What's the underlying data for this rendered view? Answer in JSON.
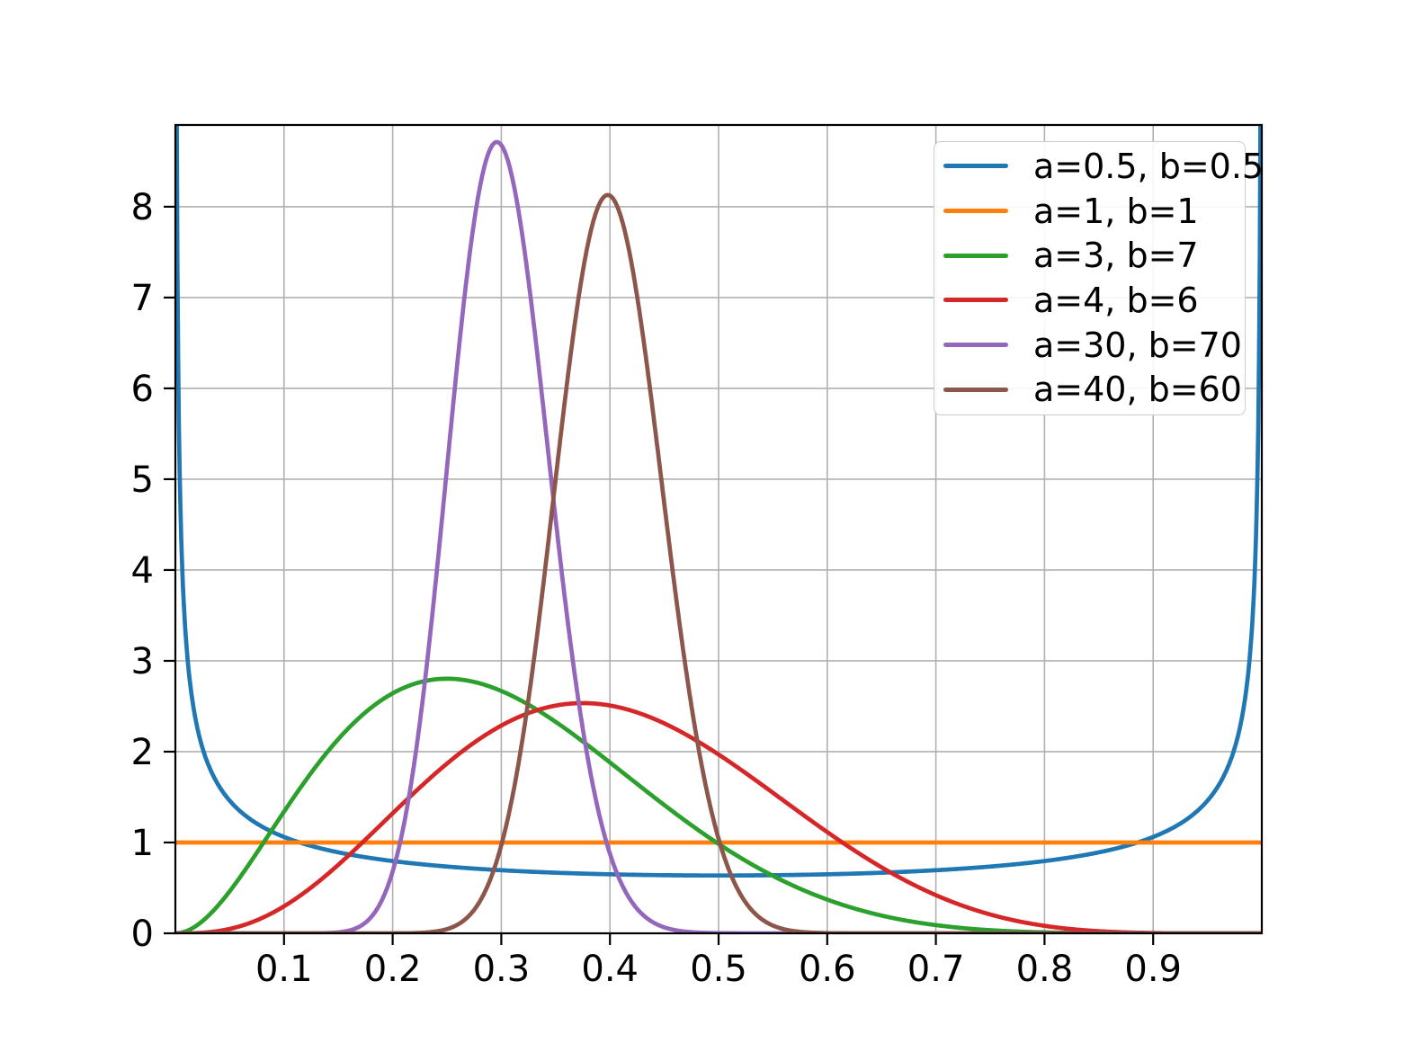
{
  "figure": {
    "background": "#ffffff",
    "grid_color": "#b0b0b0",
    "spine_color": "#000000",
    "legend_border_color": "#cccccc"
  },
  "chart_data": {
    "type": "line",
    "curve_family": "beta_distribution_pdf",
    "title": "",
    "xlabel": "",
    "ylabel": "",
    "xlim": [
      0,
      1
    ],
    "ylim": [
      0,
      8.9
    ],
    "xticks": [
      0.1,
      0.2,
      0.3,
      0.4,
      0.5,
      0.6,
      0.7,
      0.8,
      0.9
    ],
    "xtick_labels": [
      "0.1",
      "0.2",
      "0.3",
      "0.4",
      "0.5",
      "0.6",
      "0.7",
      "0.8",
      "0.9"
    ],
    "yticks": [
      0,
      1,
      2,
      3,
      4,
      5,
      6,
      7,
      8
    ],
    "ytick_labels": [
      "0",
      "1",
      "2",
      "3",
      "4",
      "5",
      "6",
      "7",
      "8"
    ],
    "grid": true,
    "legend_position": "upper right",
    "series": [
      {
        "label": "a=0.5, b=0.5",
        "a": 0.5,
        "b": 0.5,
        "color": "#1f77b4",
        "shape_note": "U-shaped; diverges at x=0 and x=1; minimum 0.637 at x=0.5"
      },
      {
        "label": "a=1, b=1",
        "a": 1,
        "b": 1,
        "color": "#ff7f0e",
        "shape_note": "uniform; constant 1 across [0,1]"
      },
      {
        "label": "a=3, b=7",
        "a": 3,
        "b": 7,
        "color": "#2ca02c",
        "peak_x": 0.25,
        "peak_y": 2.8
      },
      {
        "label": "a=4, b=6",
        "a": 4,
        "b": 6,
        "color": "#d62728",
        "peak_x": 0.375,
        "peak_y": 2.53
      },
      {
        "label": "a=30, b=70",
        "a": 30,
        "b": 70,
        "color": "#9467bd",
        "peak_x": 0.296,
        "peak_y": 8.7
      },
      {
        "label": "a=40, b=60",
        "a": 40,
        "b": 60,
        "color": "#8c564b",
        "peak_x": 0.398,
        "peak_y": 8.13
      }
    ]
  }
}
